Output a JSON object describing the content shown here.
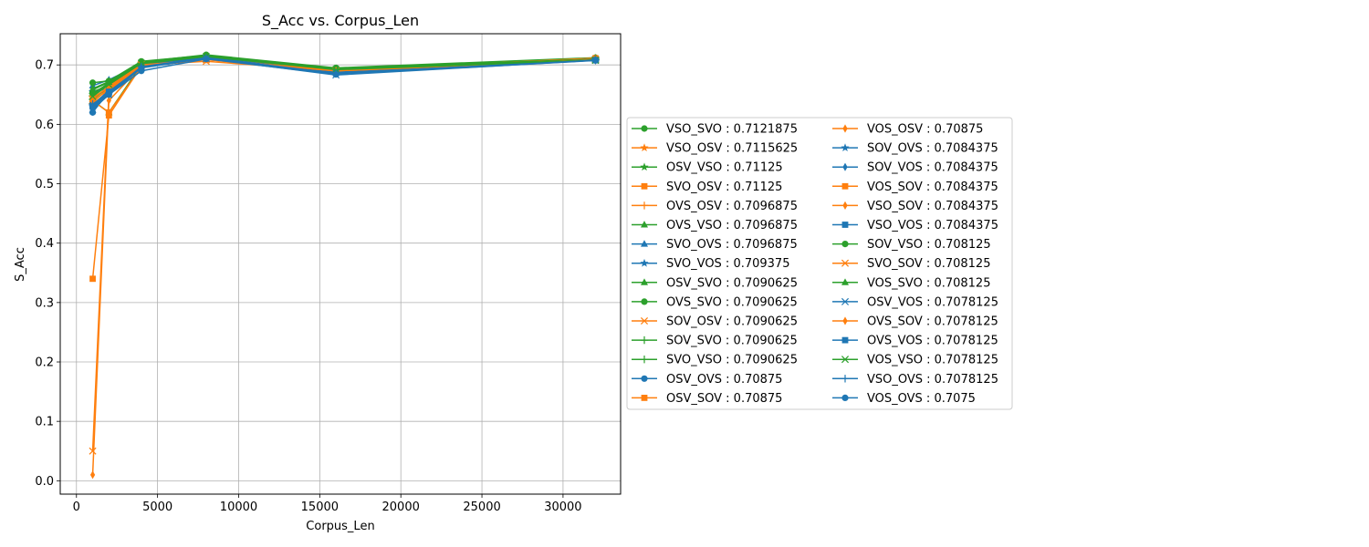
{
  "chart_data": {
    "type": "line",
    "title": "S_Acc vs. Corpus_Len",
    "xlabel": "Corpus_Len",
    "ylabel": "S_Acc",
    "xlim": [
      -1000,
      33550
    ],
    "ylim": [
      -0.0225,
      0.7525
    ],
    "xticks": [
      0,
      5000,
      10000,
      15000,
      20000,
      25000,
      30000
    ],
    "yticks": [
      0.0,
      0.1,
      0.2,
      0.3,
      0.4,
      0.5,
      0.6,
      0.7
    ],
    "grid": true,
    "legend_position": "center-right outside plot",
    "x": [
      1000,
      2000,
      4000,
      8000,
      16000,
      32000
    ],
    "series": [
      {
        "name": "VSO_SVO",
        "legend": "VSO_SVO : 0.7121875",
        "color": "#2ca02c",
        "marker": "circle",
        "values": [
          0.655,
          0.665,
          0.705,
          0.717,
          0.695,
          0.7121875
        ]
      },
      {
        "name": "VSO_OSV",
        "legend": "VSO_OSV : 0.7115625",
        "color": "#ff7f0e",
        "marker": "star",
        "values": [
          0.645,
          0.66,
          0.703,
          0.71,
          0.69,
          0.7115625
        ]
      },
      {
        "name": "OSV_VSO",
        "legend": "OSV_VSO : 0.71125",
        "color": "#2ca02c",
        "marker": "star",
        "values": [
          0.65,
          0.67,
          0.702,
          0.713,
          0.692,
          0.71125
        ]
      },
      {
        "name": "SVO_OSV",
        "legend": "SVO_OSV : 0.71125",
        "color": "#ff7f0e",
        "marker": "square",
        "values": [
          0.34,
          0.615,
          0.698,
          0.712,
          0.691,
          0.71125
        ]
      },
      {
        "name": "OVS_OSV",
        "legend": "OVS_OSV : 0.7096875",
        "color": "#ff7f0e",
        "marker": "plus",
        "values": [
          0.635,
          0.655,
          0.7,
          0.711,
          0.69,
          0.7096875
        ]
      },
      {
        "name": "OVS_VSO",
        "legend": "OVS_VSO : 0.7096875",
        "color": "#2ca02c",
        "marker": "triangle",
        "values": [
          0.64,
          0.62,
          0.7,
          0.714,
          0.693,
          0.7096875
        ]
      },
      {
        "name": "SVO_OVS",
        "legend": "SVO_OVS : 0.7096875",
        "color": "#1f77b4",
        "marker": "triangle",
        "values": [
          0.665,
          0.675,
          0.701,
          0.713,
          0.688,
          0.7096875
        ]
      },
      {
        "name": "SVO_VOS",
        "legend": "SVO_VOS : 0.709375",
        "color": "#1f77b4",
        "marker": "star",
        "values": [
          0.63,
          0.658,
          0.699,
          0.712,
          0.689,
          0.709375
        ]
      },
      {
        "name": "OSV_SVO",
        "legend": "OSV_SVO : 0.7090625",
        "color": "#2ca02c",
        "marker": "triangle",
        "values": [
          0.66,
          0.672,
          0.703,
          0.715,
          0.694,
          0.7090625
        ]
      },
      {
        "name": "OVS_SVO",
        "legend": "OVS_SVO : 0.7090625",
        "color": "#2ca02c",
        "marker": "circle",
        "values": [
          0.67,
          0.673,
          0.706,
          0.716,
          0.694,
          0.7090625
        ]
      },
      {
        "name": "SOV_OSV",
        "legend": "SOV_OSV : 0.7090625",
        "color": "#ff7f0e",
        "marker": "x",
        "values": [
          0.05,
          0.65,
          0.7,
          0.706,
          0.69,
          0.7090625
        ]
      },
      {
        "name": "SOV_SVO",
        "legend": "SOV_SVO : 0.7090625",
        "color": "#2ca02c",
        "marker": "plus",
        "values": [
          0.642,
          0.663,
          0.702,
          0.714,
          0.693,
          0.7090625
        ]
      },
      {
        "name": "SVO_VSO",
        "legend": "SVO_VSO : 0.7090625",
        "color": "#2ca02c",
        "marker": "plus",
        "values": [
          0.648,
          0.668,
          0.704,
          0.715,
          0.692,
          0.7090625
        ]
      },
      {
        "name": "OSV_OVS",
        "legend": "OSV_OVS : 0.70875",
        "color": "#1f77b4",
        "marker": "circle",
        "values": [
          0.62,
          0.655,
          0.698,
          0.712,
          0.687,
          0.70875
        ]
      },
      {
        "name": "OSV_SOV",
        "legend": "OSV_SOV : 0.70875",
        "color": "#ff7f0e",
        "marker": "square",
        "values": [
          0.64,
          0.62,
          0.697,
          0.711,
          0.69,
          0.70875
        ]
      },
      {
        "name": "VOS_OSV",
        "legend": "VOS_OSV : 0.70875",
        "color": "#ff7f0e",
        "marker": "diamond-thin",
        "values": [
          0.01,
          0.64,
          0.698,
          0.71,
          0.69,
          0.70875
        ]
      },
      {
        "name": "SOV_OVS",
        "legend": "SOV_OVS : 0.7084375",
        "color": "#1f77b4",
        "marker": "star",
        "values": [
          0.655,
          0.66,
          0.697,
          0.711,
          0.688,
          0.7084375
        ]
      },
      {
        "name": "SOV_VOS",
        "legend": "SOV_VOS : 0.7084375",
        "color": "#1f77b4",
        "marker": "diamond-thin",
        "values": [
          0.628,
          0.652,
          0.696,
          0.71,
          0.687,
          0.7084375
        ]
      },
      {
        "name": "VOS_SOV",
        "legend": "VOS_SOV : 0.7084375",
        "color": "#ff7f0e",
        "marker": "square",
        "values": [
          0.638,
          0.66,
          0.698,
          0.709,
          0.689,
          0.7084375
        ]
      },
      {
        "name": "VSO_SOV",
        "legend": "VSO_SOV : 0.7084375",
        "color": "#ff7f0e",
        "marker": "diamond-thin",
        "values": [
          0.645,
          0.662,
          0.699,
          0.71,
          0.69,
          0.7084375
        ]
      },
      {
        "name": "VSO_VOS",
        "legend": "VSO_VOS : 0.7084375",
        "color": "#1f77b4",
        "marker": "square",
        "values": [
          0.632,
          0.657,
          0.697,
          0.712,
          0.688,
          0.7084375
        ]
      },
      {
        "name": "SOV_VSO",
        "legend": "SOV_VSO : 0.708125",
        "color": "#2ca02c",
        "marker": "circle",
        "values": [
          0.652,
          0.669,
          0.704,
          0.715,
          0.693,
          0.708125
        ]
      },
      {
        "name": "SVO_SOV",
        "legend": "SVO_SOV : 0.708125",
        "color": "#ff7f0e",
        "marker": "x",
        "values": [
          0.643,
          0.664,
          0.7,
          0.709,
          0.69,
          0.708125
        ]
      },
      {
        "name": "VOS_SVO",
        "legend": "VOS_SVO : 0.708125",
        "color": "#2ca02c",
        "marker": "triangle",
        "values": [
          0.658,
          0.671,
          0.703,
          0.714,
          0.693,
          0.708125
        ]
      },
      {
        "name": "OSV_VOS",
        "legend": "OSV_VOS : 0.7078125",
        "color": "#1f77b4",
        "marker": "x",
        "values": [
          0.625,
          0.65,
          0.695,
          0.711,
          0.683,
          0.7078125
        ]
      },
      {
        "name": "OVS_SOV",
        "legend": "OVS_SOV : 0.7078125",
        "color": "#ff7f0e",
        "marker": "diamond-thin",
        "values": [
          0.64,
          0.658,
          0.698,
          0.709,
          0.69,
          0.7078125
        ]
      },
      {
        "name": "OVS_VOS",
        "legend": "OVS_VOS : 0.7078125",
        "color": "#1f77b4",
        "marker": "square",
        "values": [
          0.63,
          0.655,
          0.696,
          0.711,
          0.686,
          0.7078125
        ]
      },
      {
        "name": "VOS_VSO",
        "legend": "VOS_VSO : 0.7078125",
        "color": "#2ca02c",
        "marker": "x",
        "values": [
          0.647,
          0.667,
          0.703,
          0.714,
          0.692,
          0.7078125
        ]
      },
      {
        "name": "VSO_OVS",
        "legend": "VSO_OVS : 0.7078125",
        "color": "#1f77b4",
        "marker": "plus",
        "values": [
          0.634,
          0.653,
          0.697,
          0.712,
          0.686,
          0.7078125
        ]
      },
      {
        "name": "VOS_OVS",
        "legend": "VOS_OVS : 0.7075",
        "color": "#1f77b4",
        "marker": "circle",
        "values": [
          0.628,
          0.65,
          0.69,
          0.71,
          0.684,
          0.7075
        ]
      }
    ]
  }
}
